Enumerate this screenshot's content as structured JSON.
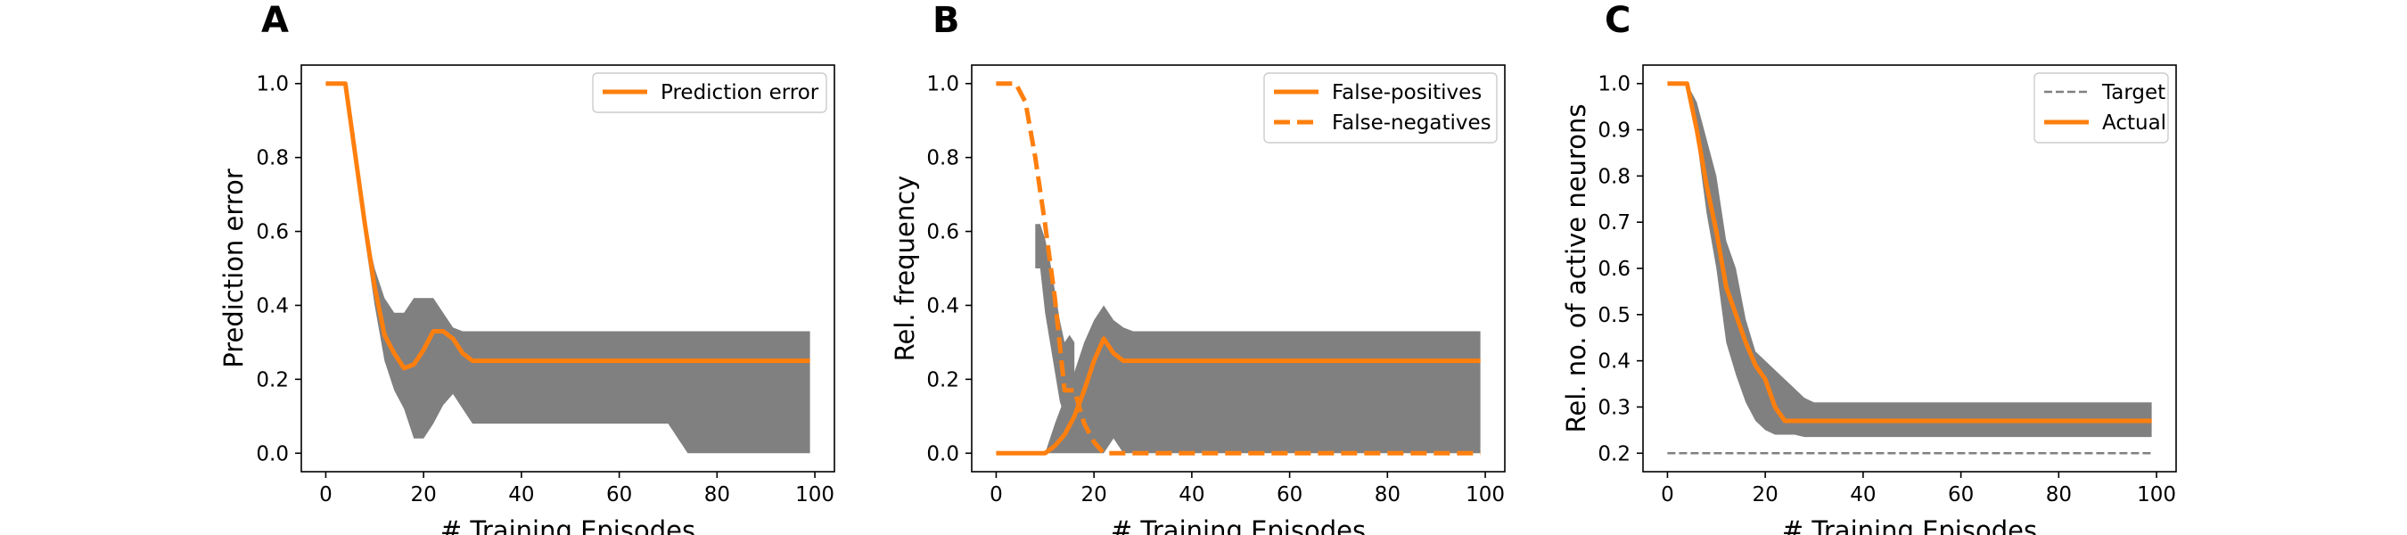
{
  "colors": {
    "line": "#ff7f0e",
    "band": "#808080",
    "target": "#808080",
    "axes": "#000000",
    "background": "#ffffff"
  },
  "chart_data": [
    {
      "panel": "A",
      "type": "line",
      "title": "",
      "xlabel": "# Training Episodes",
      "ylabel": "Prediction error",
      "xlim": [
        -5,
        104
      ],
      "ylim": [
        -0.05,
        1.05
      ],
      "xticks": [
        0,
        20,
        40,
        60,
        80,
        100
      ],
      "yticks": [
        0.0,
        0.2,
        0.4,
        0.6,
        0.8,
        1.0
      ],
      "ytick_format": 1,
      "legend_position": "top-right",
      "grid": false,
      "series": [
        {
          "name": "Prediction error",
          "style": "solid",
          "x": [
            0,
            4,
            8,
            10,
            12,
            14,
            16,
            18,
            20,
            22,
            24,
            26,
            28,
            30,
            40,
            60,
            80,
            99
          ],
          "y": [
            1.0,
            1.0,
            0.62,
            0.45,
            0.32,
            0.27,
            0.23,
            0.24,
            0.28,
            0.33,
            0.33,
            0.31,
            0.27,
            0.25,
            0.25,
            0.25,
            0.25,
            0.25
          ]
        }
      ],
      "bands": [
        {
          "x": [
            0,
            4,
            8,
            10,
            12,
            14,
            16,
            18,
            20,
            22,
            24,
            26,
            28,
            30,
            40,
            60,
            70,
            74,
            80,
            99
          ],
          "lower": [
            1.0,
            1.0,
            0.58,
            0.4,
            0.25,
            0.17,
            0.12,
            0.04,
            0.04,
            0.08,
            0.13,
            0.16,
            0.12,
            0.08,
            0.08,
            0.08,
            0.08,
            0.0,
            0.0,
            0.0
          ],
          "upper": [
            1.0,
            1.0,
            0.62,
            0.5,
            0.42,
            0.38,
            0.38,
            0.42,
            0.42,
            0.42,
            0.38,
            0.34,
            0.33,
            0.33,
            0.33,
            0.33,
            0.33,
            0.33,
            0.33,
            0.33
          ]
        }
      ]
    },
    {
      "panel": "B",
      "type": "line",
      "title": "",
      "xlabel": "# Training Episodes",
      "ylabel": "Rel. frequency",
      "xlim": [
        -5,
        104
      ],
      "ylim": [
        -0.05,
        1.05
      ],
      "xticks": [
        0,
        20,
        40,
        60,
        80,
        100
      ],
      "yticks": [
        0.0,
        0.2,
        0.4,
        0.6,
        0.8,
        1.0
      ],
      "ytick_format": 1,
      "legend_position": "top-right",
      "grid": false,
      "series": [
        {
          "name": "False-positives",
          "style": "solid",
          "x": [
            0,
            10,
            12,
            14,
            16,
            18,
            20,
            22,
            24,
            26,
            30,
            40,
            60,
            80,
            99
          ],
          "y": [
            0.0,
            0.0,
            0.02,
            0.05,
            0.1,
            0.17,
            0.25,
            0.31,
            0.27,
            0.25,
            0.25,
            0.25,
            0.25,
            0.25,
            0.25
          ]
        },
        {
          "name": "False-negatives",
          "style": "dashed",
          "x": [
            0,
            4,
            6,
            8,
            10,
            12,
            14,
            16,
            18,
            20,
            22,
            24,
            40,
            60,
            80,
            99
          ],
          "y": [
            1.0,
            1.0,
            0.95,
            0.8,
            0.62,
            0.42,
            0.17,
            0.17,
            0.08,
            0.03,
            0.0,
            0.0,
            0.0,
            0.0,
            0.0,
            0.0
          ]
        }
      ],
      "bands": [
        {
          "x": [
            0,
            10,
            12,
            14,
            16,
            18,
            20,
            22,
            24,
            26,
            28,
            30,
            40,
            60,
            70,
            74,
            80,
            99
          ],
          "lower": [
            0.0,
            0.0,
            0.0,
            0.0,
            0.0,
            0.0,
            0.0,
            0.0,
            0.04,
            0.0,
            0.0,
            0.0,
            0.0,
            0.0,
            0.0,
            0.0,
            0.0,
            0.0
          ],
          "upper": [
            0.0,
            0.0,
            0.08,
            0.15,
            0.22,
            0.3,
            0.36,
            0.4,
            0.36,
            0.34,
            0.33,
            0.33,
            0.33,
            0.33,
            0.33,
            0.33,
            0.33,
            0.33
          ]
        },
        {
          "x": [
            8,
            9,
            10,
            11,
            12,
            13,
            14,
            15,
            16
          ],
          "lower": [
            0.5,
            0.5,
            0.38,
            0.3,
            0.22,
            0.14,
            0.1,
            0.1,
            0.12
          ],
          "upper": [
            0.62,
            0.62,
            0.58,
            0.52,
            0.44,
            0.36,
            0.3,
            0.32,
            0.3
          ]
        },
        {
          "x": [
            24,
            26,
            28,
            30,
            40,
            60,
            70,
            74
          ],
          "lower": [
            0.09,
            0.16,
            0.12,
            0.08,
            0.08,
            0.08,
            0.08,
            0.0
          ],
          "upper": [
            0.24,
            0.24,
            0.24,
            0.24,
            0.24,
            0.24,
            0.24,
            0.24
          ]
        }
      ]
    },
    {
      "panel": "C",
      "type": "line",
      "title": "",
      "xlabel": "# Training Episodes",
      "ylabel": "Rel. no. of active neurons",
      "xlim": [
        -5,
        104
      ],
      "ylim": [
        0.16,
        1.04
      ],
      "xticks": [
        0,
        20,
        40,
        60,
        80,
        100
      ],
      "yticks": [
        0.2,
        0.3,
        0.4,
        0.5,
        0.6,
        0.7,
        0.8,
        0.9,
        1.0
      ],
      "ytick_format": 1,
      "legend_position": "top-right",
      "grid": false,
      "series": [
        {
          "name": "Target",
          "style": "dashed-thin",
          "x": [
            0,
            99
          ],
          "y": [
            0.2,
            0.2
          ]
        },
        {
          "name": "Actual",
          "style": "solid",
          "x": [
            0,
            4,
            6,
            8,
            10,
            12,
            14,
            16,
            18,
            20,
            22,
            24,
            30,
            40,
            60,
            80,
            99
          ],
          "y": [
            1.0,
            1.0,
            0.9,
            0.78,
            0.68,
            0.56,
            0.5,
            0.44,
            0.39,
            0.36,
            0.3,
            0.27,
            0.27,
            0.27,
            0.27,
            0.27,
            0.27
          ]
        }
      ],
      "bands": [
        {
          "x": [
            0,
            4,
            6,
            8,
            10,
            12,
            14,
            16,
            18,
            20,
            22,
            24,
            26,
            28,
            30,
            40,
            60,
            80,
            99
          ],
          "lower": [
            1.0,
            1.0,
            0.88,
            0.72,
            0.6,
            0.44,
            0.37,
            0.31,
            0.27,
            0.25,
            0.24,
            0.24,
            0.24,
            0.235,
            0.235,
            0.235,
            0.235,
            0.235,
            0.235
          ],
          "upper": [
            1.0,
            1.0,
            0.96,
            0.88,
            0.8,
            0.66,
            0.6,
            0.49,
            0.42,
            0.4,
            0.38,
            0.36,
            0.34,
            0.32,
            0.31,
            0.31,
            0.31,
            0.31,
            0.31
          ]
        }
      ]
    }
  ]
}
